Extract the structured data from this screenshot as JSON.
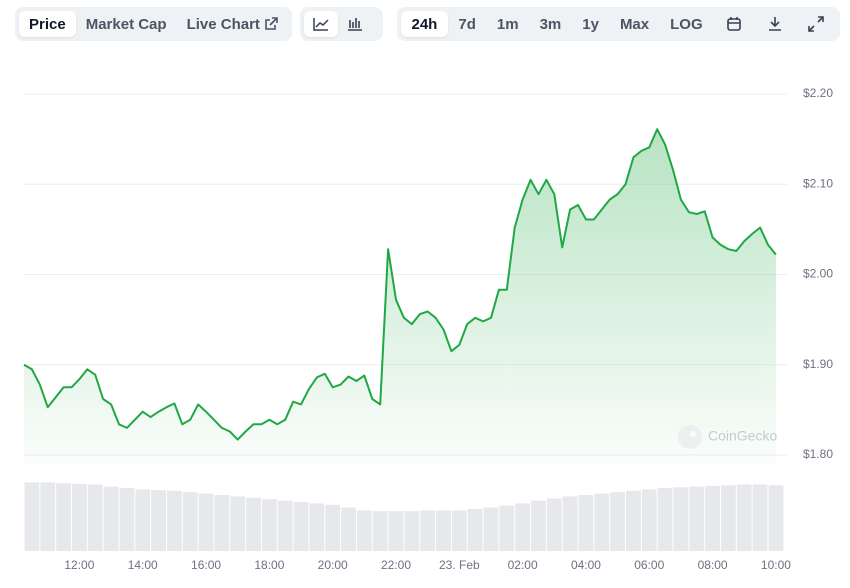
{
  "toolbar": {
    "tabs": [
      "Price",
      "Market Cap",
      "Live Chart"
    ],
    "ranges": [
      "24h",
      "7d",
      "1m",
      "3m",
      "1y",
      "Max",
      "LOG"
    ]
  },
  "chart_data": {
    "type": "area",
    "x": [
      10.25,
      10.5,
      10.75,
      11,
      11.25,
      11.5,
      11.75,
      12,
      12.25,
      12.5,
      12.75,
      13,
      13.25,
      13.5,
      13.75,
      14,
      14.25,
      14.5,
      14.75,
      15,
      15.25,
      15.5,
      15.75,
      16,
      16.25,
      16.5,
      16.75,
      17,
      17.25,
      17.5,
      17.75,
      18,
      18.25,
      18.5,
      18.75,
      19,
      19.25,
      19.5,
      19.75,
      20,
      20.25,
      20.5,
      20.75,
      21,
      21.25,
      21.5,
      21.75,
      22,
      22.25,
      22.5,
      22.75,
      23,
      23.25,
      23.5,
      23.75,
      24,
      24.25,
      24.5,
      24.75,
      25,
      25.25,
      25.5,
      25.75,
      26,
      26.25,
      26.5,
      26.75,
      27,
      27.25,
      27.5,
      27.75,
      28,
      28.25,
      28.5,
      28.75,
      29,
      29.25,
      29.5,
      29.75,
      30,
      30.25,
      30.5,
      30.75,
      31,
      31.25,
      31.5,
      31.75,
      32,
      32.25,
      32.5,
      32.75,
      33,
      33.25,
      33.5,
      33.75,
      34
    ],
    "values": [
      1.9,
      1.895,
      1.878,
      1.853,
      1.864,
      1.875,
      1.875,
      1.884,
      1.895,
      1.889,
      1.862,
      1.856,
      1.834,
      1.83,
      1.839,
      1.848,
      1.842,
      1.848,
      1.853,
      1.857,
      1.834,
      1.839,
      1.856,
      1.848,
      1.839,
      1.83,
      1.826,
      1.817,
      1.826,
      1.834,
      1.834,
      1.839,
      1.834,
      1.839,
      1.859,
      1.856,
      1.873,
      1.886,
      1.89,
      1.875,
      1.878,
      1.887,
      1.882,
      1.888,
      1.862,
      1.856,
      2.028,
      1.972,
      1.952,
      1.945,
      1.956,
      1.959,
      1.952,
      1.939,
      1.915,
      1.922,
      1.945,
      1.952,
      1.948,
      1.952,
      1.983,
      1.983,
      2.052,
      2.083,
      2.105,
      2.089,
      2.105,
      2.089,
      2.03,
      2.072,
      2.077,
      2.061,
      2.061,
      2.072,
      2.083,
      2.089,
      2.1,
      2.13,
      2.137,
      2.141,
      2.161,
      2.144,
      2.116,
      2.083,
      2.069,
      2.067,
      2.07,
      2.041,
      2.033,
      2.028,
      2.026,
      2.037,
      2.045,
      2.052,
      2.033,
      2.022
    ],
    "color": "#1fa843",
    "xlim": [
      10.25,
      34.35
    ],
    "ylim": [
      1.79,
      2.21
    ],
    "xticks": [
      {
        "value": 12,
        "label": "12:00"
      },
      {
        "value": 14,
        "label": "14:00"
      },
      {
        "value": 16,
        "label": "16:00"
      },
      {
        "value": 18,
        "label": "18:00"
      },
      {
        "value": 20,
        "label": "20:00"
      },
      {
        "value": 22,
        "label": "22:00"
      },
      {
        "value": 24,
        "label": "23. Feb"
      },
      {
        "value": 26,
        "label": "02:00"
      },
      {
        "value": 28,
        "label": "04:00"
      },
      {
        "value": 30,
        "label": "06:00"
      },
      {
        "value": 32,
        "label": "08:00"
      },
      {
        "value": 34,
        "label": "10:00"
      }
    ],
    "yticks": [
      {
        "value": 2.2,
        "label": "$2.20"
      },
      {
        "value": 2.1,
        "label": "$2.10"
      },
      {
        "value": 2.0,
        "label": "$2.00"
      },
      {
        "value": 1.9,
        "label": "$1.90"
      },
      {
        "value": 1.8,
        "label": "$1.80"
      }
    ],
    "grid": true,
    "watermark": "CoinGecko",
    "volume": {
      "x": [
        10.5,
        11,
        11.5,
        12,
        12.5,
        13,
        13.5,
        14,
        14.5,
        15,
        15.5,
        16,
        16.5,
        17,
        17.5,
        18,
        18.5,
        19,
        19.5,
        20,
        20.5,
        21,
        21.5,
        22,
        22.5,
        23,
        23.5,
        24,
        24.5,
        25,
        25.5,
        26,
        26.5,
        27,
        27.5,
        28,
        28.5,
        29,
        29.5,
        30,
        30.5,
        31,
        31.5,
        32,
        32.5,
        33,
        33.5,
        34
      ],
      "values": [
        98,
        98,
        97,
        96,
        95,
        92,
        90,
        88,
        87,
        86,
        84,
        82,
        80,
        78,
        76,
        74,
        72,
        70,
        68,
        66,
        62,
        58,
        57,
        57,
        57,
        58,
        58,
        58,
        60,
        62,
        65,
        68,
        72,
        75,
        78,
        80,
        82,
        84,
        86,
        88,
        90,
        91,
        92,
        93,
        94,
        95,
        95,
        94
      ],
      "ylim": [
        0,
        100
      ],
      "color": "#e6e8eb"
    }
  }
}
